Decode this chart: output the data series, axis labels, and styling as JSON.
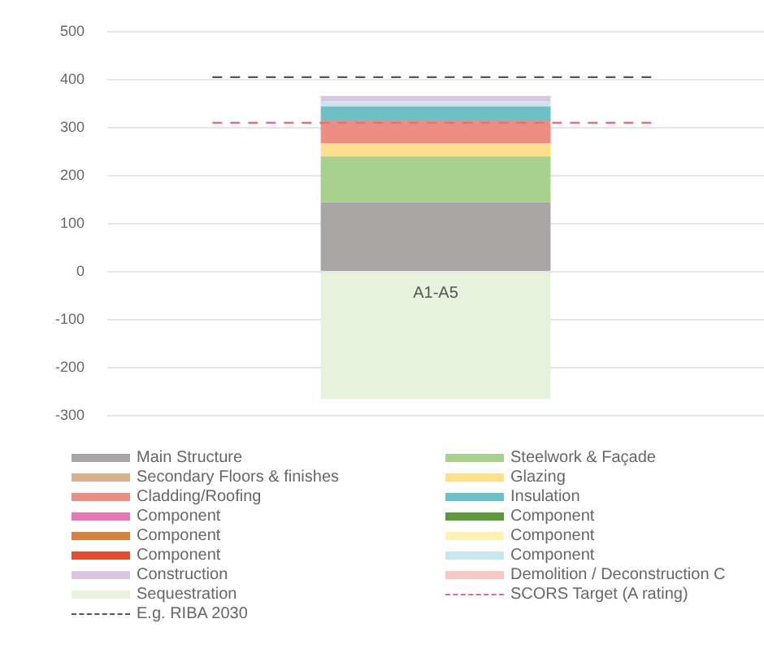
{
  "chart_data": {
    "type": "bar",
    "stacked": true,
    "categories": [
      "A1-A5"
    ],
    "series": [
      {
        "name": "Main Structure",
        "color": "#a9a5a5",
        "values": [
          145
        ]
      },
      {
        "name": "Steelwork & Façade",
        "color": "#a8d18d",
        "values": [
          95
        ]
      },
      {
        "name": "Secondary Floors & finishes",
        "color": "#d9b08c",
        "values": [
          null
        ]
      },
      {
        "name": "Glazing",
        "color": "#ffe08a",
        "values": [
          27
        ]
      },
      {
        "name": "Cladding/Roofing",
        "color": "#ec8f82",
        "values": [
          48
        ]
      },
      {
        "name": "Insulation",
        "color": "#6cc0c8",
        "values": [
          29
        ]
      },
      {
        "name": "Component",
        "color": "#e878b0",
        "values": [
          null
        ]
      },
      {
        "name": "Component",
        "color": "#5a9a3a",
        "values": [
          null
        ]
      },
      {
        "name": "Component",
        "color": "#d98040",
        "values": [
          null
        ]
      },
      {
        "name": "Component",
        "color": "#fff2b0",
        "values": [
          null
        ]
      },
      {
        "name": "Component",
        "color": "#e05030",
        "values": [
          null
        ]
      },
      {
        "name": "Component",
        "color": "#c8e6ee",
        "values": [
          11
        ]
      },
      {
        "name": "Construction",
        "color": "#d9c6e0",
        "values": [
          11
        ]
      },
      {
        "name": "Demolition / Deconstruction C",
        "color": "#f7c9c0",
        "values": [
          null
        ]
      },
      {
        "name": "Sequestration",
        "color": "#e6f2dc",
        "values": [
          -265
        ]
      }
    ],
    "ref_lines": [
      {
        "axis": "y",
        "value": 310,
        "label": "SCORS Target (A rating)",
        "color": "#e07080",
        "line_style": "dashed"
      },
      {
        "axis": "y",
        "value": 405,
        "label": "E.g. RIBA 2030",
        "color": "#555555",
        "line_style": "dashed"
      }
    ],
    "ylim": [
      -300,
      500
    ],
    "yticks": [
      -300,
      -200,
      -100,
      0,
      100,
      200,
      300,
      400,
      500
    ],
    "grid": "y",
    "legend": "bottom"
  }
}
